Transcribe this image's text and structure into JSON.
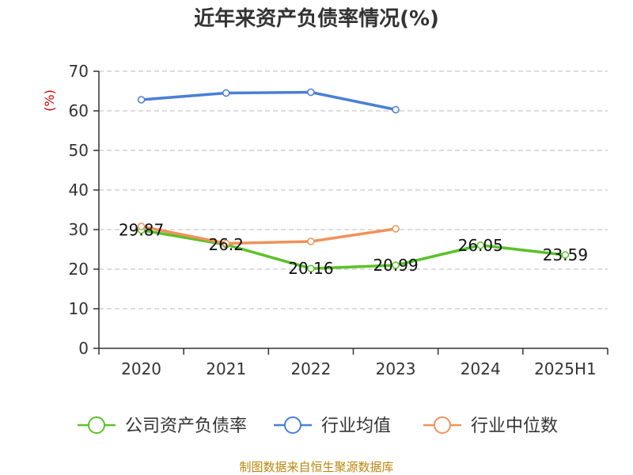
{
  "chart_data": {
    "type": "line",
    "title": "近年来资产负债率情况(%)",
    "ylabel": "(%)",
    "xlabel": "",
    "categories": [
      "2020",
      "2021",
      "2022",
      "2023",
      "2024",
      "2025H1"
    ],
    "ylim": [
      0,
      70
    ],
    "yticks": [
      0,
      10,
      20,
      30,
      40,
      50,
      60,
      70
    ],
    "grid": true,
    "legend_position": "bottom",
    "series": [
      {
        "name": "公司资产负债率",
        "color": "#5ac229",
        "values": [
          29.87,
          26.2,
          20.16,
          20.99,
          26.05,
          23.59
        ],
        "labels": [
          "29.87",
          "26.2",
          "20.16",
          "20.99",
          "26.05",
          "23.59"
        ],
        "show_labels": true
      },
      {
        "name": "行业均值",
        "color": "#4a7fd6",
        "values": [
          62.8,
          64.5,
          64.7,
          60.3,
          null,
          null
        ],
        "show_labels": false
      },
      {
        "name": "行业中位数",
        "color": "#f0925a",
        "values": [
          30.8,
          26.5,
          27.0,
          30.2,
          null,
          null
        ],
        "show_labels": false
      }
    ]
  },
  "source": "制图数据来自恒生聚源数据库"
}
